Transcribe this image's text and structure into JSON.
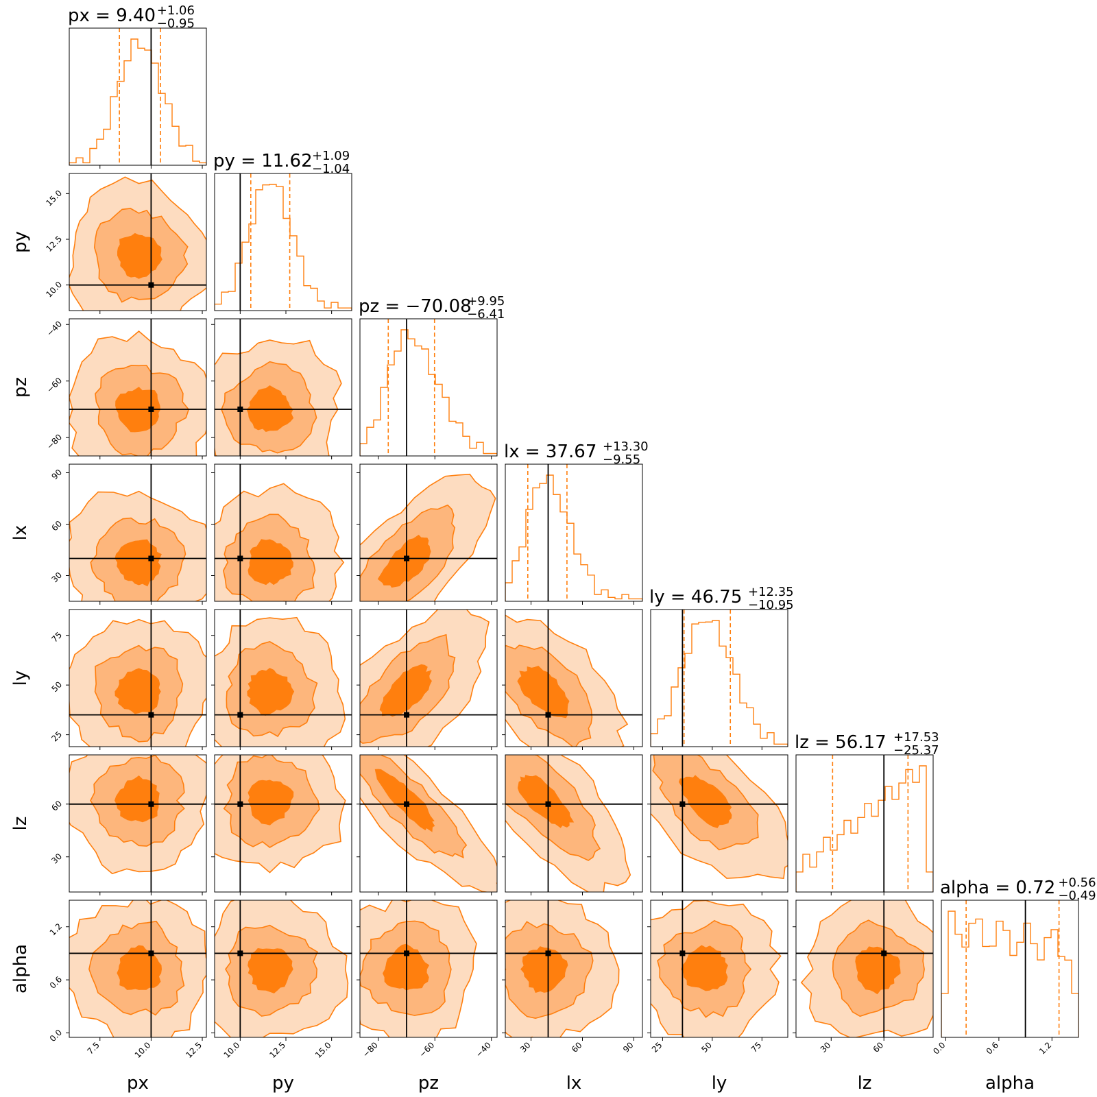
{
  "chart_data": {
    "type": "corner",
    "parameters": [
      "px",
      "py",
      "pz",
      "lx",
      "ly",
      "lz",
      "alpha"
    ],
    "axis_labels": [
      "px",
      "py",
      "pz",
      "lx",
      "ly",
      "lz",
      "alpha"
    ],
    "titles": [
      {
        "param": "px",
        "label": "px = 9.40",
        "median": 9.4,
        "plus": "+1.06",
        "minus": "−0.95"
      },
      {
        "param": "py",
        "label": "py = 11.62",
        "median": 11.62,
        "plus": "+1.09",
        "minus": "−1.04"
      },
      {
        "param": "pz",
        "label": "pz = −70.08",
        "median": -70.08,
        "plus": "+9.95",
        "minus": "−6.41"
      },
      {
        "param": "lx",
        "label": "lx = 37.67",
        "median": 37.67,
        "plus": "+13.30",
        "minus": "−9.55"
      },
      {
        "param": "ly",
        "label": "ly = 46.75",
        "median": 46.75,
        "plus": "+12.35",
        "minus": "−10.95"
      },
      {
        "param": "lz",
        "label": "lz = 56.17",
        "median": 56.17,
        "plus": "+17.53",
        "minus": "−25.37"
      },
      {
        "param": "alpha",
        "label": "alpha = 0.72",
        "median": 0.72,
        "plus": "+0.56",
        "minus": "−0.49"
      }
    ],
    "ranges": [
      [
        6.0,
        12.7
      ],
      [
        8.6,
        16.1
      ],
      [
        -86.5,
        -38.0
      ],
      [
        15.0,
        95.0
      ],
      [
        19.0,
        88.0
      ],
      [
        10.0,
        88.0
      ],
      [
        -0.05,
        1.5
      ]
    ],
    "quantiles": [
      [
        8.45,
        10.46
      ],
      [
        10.58,
        12.71
      ],
      [
        -76.49,
        -60.13
      ],
      [
        28.12,
        50.97
      ],
      [
        35.8,
        59.1
      ],
      [
        30.8,
        73.7
      ],
      [
        0.23,
        1.28
      ]
    ],
    "truths": [
      10.0,
      10.0,
      -70.0,
      40.0,
      35.0,
      60.0,
      0.9
    ],
    "ticks": {
      "px": {
        "values": [
          7.5,
          10.0,
          12.5
        ],
        "labels": [
          "7.5",
          "10.0",
          "12.5"
        ]
      },
      "py": {
        "values": [
          10.0,
          12.5,
          15.0
        ],
        "labels": [
          "10.0",
          "12.5",
          "15.0"
        ]
      },
      "pz": {
        "values": [
          -80,
          -60,
          -40
        ],
        "labels": [
          "−80",
          "−60",
          "−40"
        ]
      },
      "lx": {
        "values": [
          30,
          60,
          90
        ],
        "labels": [
          "30",
          "60",
          "90"
        ]
      },
      "ly": {
        "values": [
          25,
          50,
          75
        ],
        "labels": [
          "25",
          "50",
          "75"
        ]
      },
      "lz": {
        "values": [
          30,
          60
        ],
        "labels": [
          "30",
          "60"
        ]
      },
      "alpha": {
        "values": [
          0.0,
          0.6,
          1.2
        ],
        "labels": [
          "0.0",
          "0.6",
          "1.2"
        ]
      }
    },
    "contour_levels": [
      "39.3%",
      "86.5%",
      "98.9%"
    ],
    "colors": {
      "line": "#ff7f0e",
      "fill_inner": "#ff7f0e",
      "fill_mid": "#fdb67c",
      "fill_outer": "#fddcc0",
      "truth": "#000000"
    },
    "grid": false,
    "legend": "none"
  }
}
